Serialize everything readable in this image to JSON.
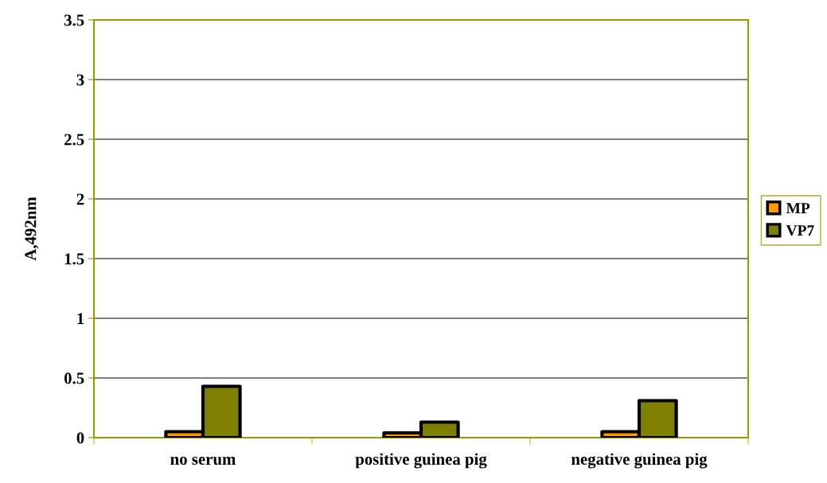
{
  "chart_data": {
    "type": "bar",
    "ylabel": "A,492nm",
    "categories": [
      "no serum",
      "positive guinea pig",
      "negative guinea pig"
    ],
    "series": [
      {
        "name": "MP",
        "color": "#ff9900",
        "values": [
          0.05,
          0.04,
          0.05
        ]
      },
      {
        "name": "VP7",
        "color": "#808000",
        "values": [
          0.43,
          0.13,
          0.31
        ]
      }
    ],
    "ylim": [
      0,
      3.5
    ],
    "yticks": [
      0,
      0.5,
      1,
      1.5,
      2,
      2.5,
      3,
      3.5
    ],
    "grid": "y",
    "legend": "right"
  }
}
